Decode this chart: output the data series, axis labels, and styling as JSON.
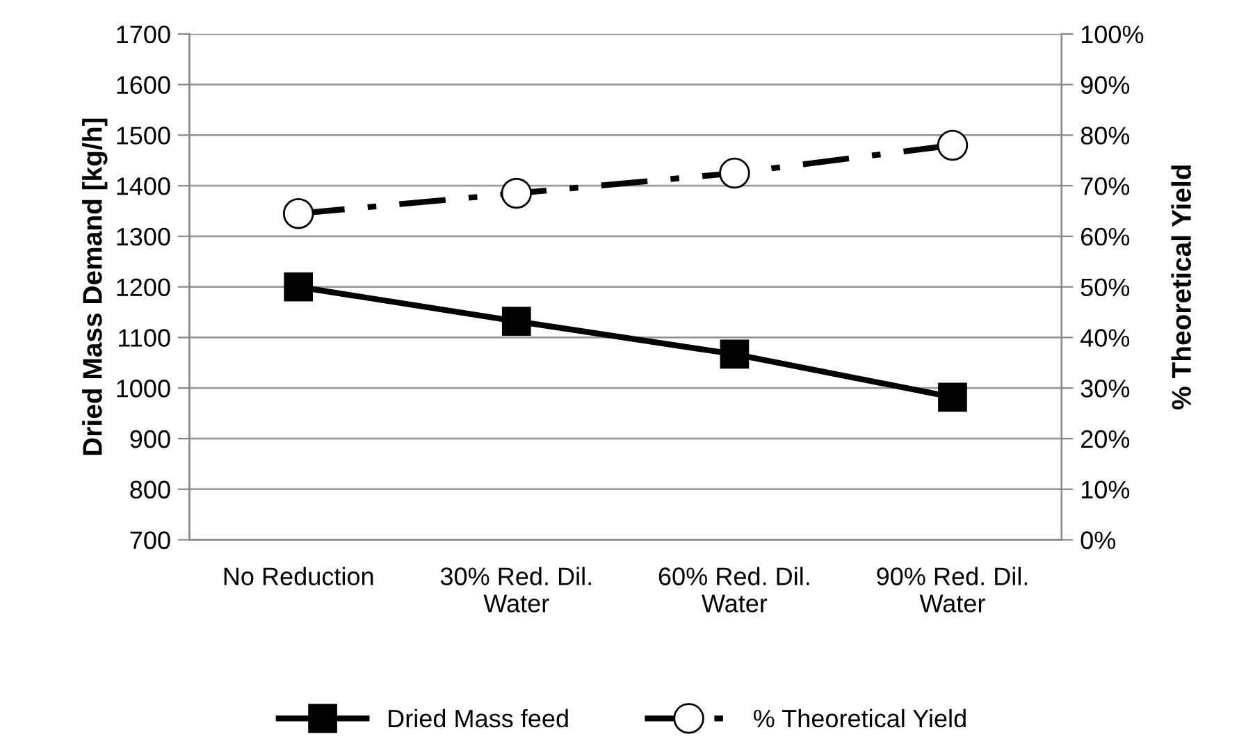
{
  "chart_data": {
    "type": "line",
    "categories": [
      "No Reduction",
      "30% Red. Dil.\nWater",
      "60% Red. Dil.\nWater",
      "90% Red. Dil.\nWater"
    ],
    "series": [
      {
        "name": "Dried Mass feed",
        "color": "#000000",
        "values": [
          1200,
          1132,
          1067,
          982
        ],
        "marker": "square",
        "line_style": "solid"
      },
      {
        "name": "% Theoretical Yield",
        "color": "#000000",
        "values": [
          64.5,
          68.5,
          72.5,
          78
        ],
        "axis": "y2",
        "marker": "circle",
        "line_style": "dashdot"
      }
    ],
    "ylabel": "Dried Mass Demand [kg/h]",
    "y2label": "% Theoretical Yield",
    "ylim": [
      700,
      1700
    ],
    "yticks": [
      700,
      800,
      900,
      1000,
      1100,
      1200,
      1300,
      1400,
      1500,
      1600,
      1700
    ],
    "y2lim": [
      0,
      100
    ],
    "y2ticks": [
      {
        "value": 0,
        "label": "0%"
      },
      {
        "value": 10,
        "label": "10%"
      },
      {
        "value": 20,
        "label": "20%"
      },
      {
        "value": 30,
        "label": "30%"
      },
      {
        "value": 40,
        "label": "40%"
      },
      {
        "value": 50,
        "label": "50%"
      },
      {
        "value": 60,
        "label": "60%"
      },
      {
        "value": 70,
        "label": "70%"
      },
      {
        "value": 80,
        "label": "80%"
      },
      {
        "value": 90,
        "label": "90%"
      },
      {
        "value": 100,
        "label": "100%"
      }
    ],
    "grid": "y",
    "legend": "bottom"
  }
}
